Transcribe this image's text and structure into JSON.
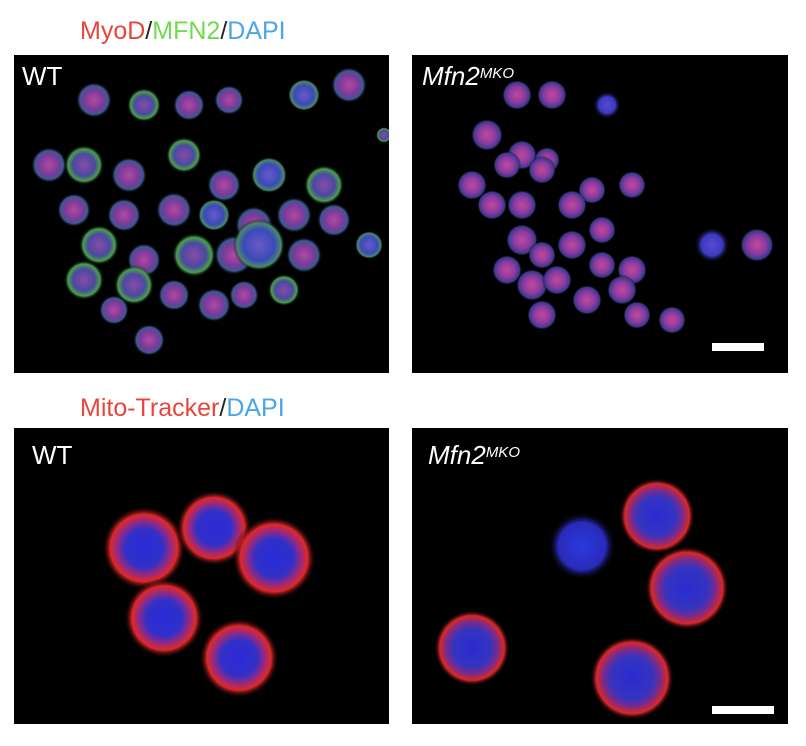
{
  "figure": {
    "top_legend": {
      "parts": [
        {
          "text": "MyoD",
          "color": "#e8453c"
        },
        {
          "text": "/",
          "color": "#222222"
        },
        {
          "text": "MFN2",
          "color": "#6fdc4f"
        },
        {
          "text": "/",
          "color": "#222222"
        },
        {
          "text": "DAPI",
          "color": "#4aa6e8"
        }
      ]
    },
    "bottom_legend": {
      "parts": [
        {
          "text": "Mito-Tracker",
          "color": "#e8453c"
        },
        {
          "text": "/",
          "color": "#222222"
        },
        {
          "text": "DAPI",
          "color": "#4aa6e8"
        }
      ]
    },
    "panels": {
      "top_left_label": "WT",
      "top_right_label_base": "Mfn2",
      "top_right_label_sup": "MKO",
      "bottom_left_label": "WT",
      "bottom_right_label_base": "Mfn2",
      "bottom_right_label_sup": "MKO"
    }
  }
}
